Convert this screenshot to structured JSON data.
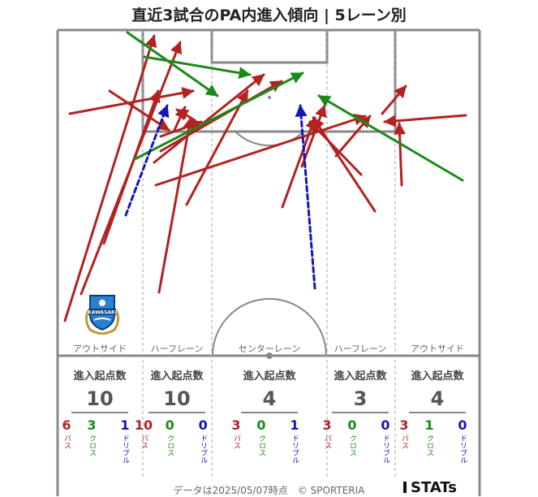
{
  "title": "直近3試合のPA内進入傾向 | 5レーン別",
  "colors": {
    "pass": "#b22222",
    "cross": "#1a8a1a",
    "dribble": "#1515b8",
    "pitch_line": "#888888",
    "lane_line": "#aaaaaa"
  },
  "crest": {
    "icon": "kawasaki-frontale-crest-icon",
    "text": "KAWASAKI"
  },
  "lanes": [
    {
      "label": "アウトサイド",
      "stats_header": "進入起点数",
      "total": "10",
      "pass": "6",
      "cross": "3",
      "dribble": "1"
    },
    {
      "label": "ハーフレーン",
      "stats_header": "進入起点数",
      "total": "10",
      "pass": "10",
      "cross": "0",
      "dribble": "0"
    },
    {
      "label": "センターレーン",
      "stats_header": "進入起点数",
      "total": "4",
      "pass": "3",
      "cross": "0",
      "dribble": "1"
    },
    {
      "label": "ハーフレーン",
      "stats_header": "進入起点数",
      "total": "3",
      "pass": "3",
      "cross": "0",
      "dribble": "0"
    },
    {
      "label": "アウトサイド",
      "stats_header": "進入起点数",
      "total": "4",
      "pass": "3",
      "cross": "1",
      "dribble": "0"
    }
  ],
  "type_labels": {
    "pass": "パス",
    "cross": "クロス",
    "dribble": "ドリブル"
  },
  "footer": "データは2025/05/07時点　© SPORTERIA",
  "brand": "STATs"
}
